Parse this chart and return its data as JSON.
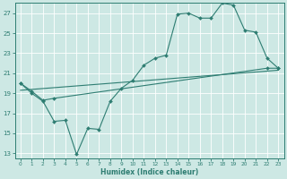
{
  "xlabel": "Humidex (Indice chaleur)",
  "bg_color": "#cde8e4",
  "line_color": "#2e7d72",
  "grid_color": "#ffffff",
  "xlim": [
    -0.5,
    23.5
  ],
  "ylim": [
    12.5,
    28.0
  ],
  "yticks": [
    13,
    15,
    17,
    19,
    21,
    23,
    25,
    27
  ],
  "xticks": [
    0,
    1,
    2,
    3,
    4,
    5,
    6,
    7,
    8,
    9,
    10,
    11,
    12,
    13,
    14,
    15,
    16,
    17,
    18,
    19,
    20,
    21,
    22,
    23
  ],
  "line1_x": [
    0,
    1,
    2,
    3,
    4,
    5,
    6,
    7,
    8,
    9,
    10,
    11,
    12,
    13,
    14,
    15,
    16,
    17,
    18,
    19,
    20,
    21,
    22,
    23
  ],
  "line1_y": [
    20.0,
    19.0,
    18.2,
    16.2,
    16.3,
    12.9,
    15.5,
    15.4,
    18.2,
    19.5,
    20.3,
    21.8,
    22.5,
    22.8,
    26.9,
    27.0,
    26.5,
    26.5,
    28.0,
    27.8,
    25.3,
    25.1,
    22.5,
    21.5
  ],
  "line2_x": [
    0,
    1,
    2,
    3,
    22,
    23
  ],
  "line2_y": [
    20.0,
    19.2,
    18.3,
    18.5,
    21.5,
    21.5
  ],
  "line3_x": [
    0,
    23
  ],
  "line3_y": [
    19.3,
    21.3
  ]
}
